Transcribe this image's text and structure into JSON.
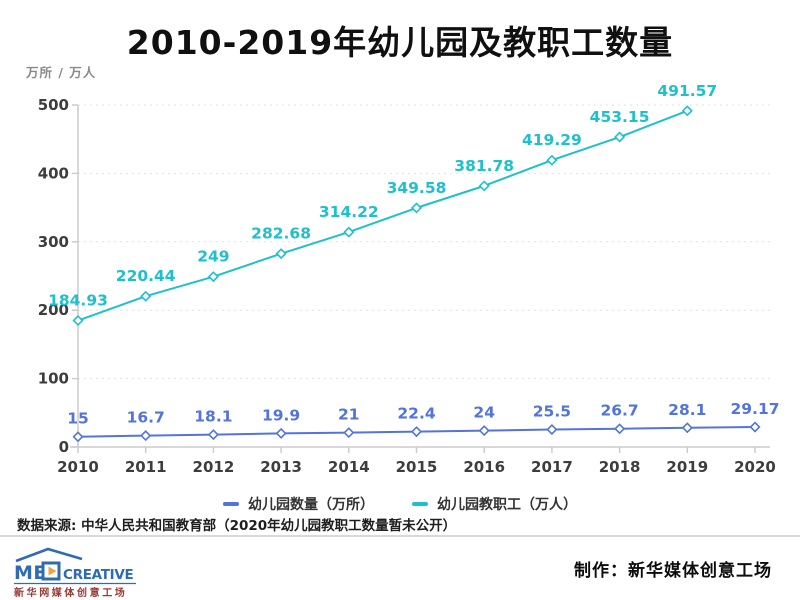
{
  "title": "2010-2019年幼儿园及教职工数量",
  "unit_label": "万所 / 万人",
  "source_note": "数据来源: 中华人民共和国教育部（2020年幼儿园教职工数量暂未公开）",
  "legend": {
    "items": [
      {
        "label": "幼儿园数量（万所）"
      },
      {
        "label": "幼儿园教职工（万人）"
      }
    ]
  },
  "footer": {
    "logo_text_pre": "ME",
    "logo_text_post": "CREATIVE",
    "logo_subtitle": "新华网媒体创意工场",
    "credit": "制作：新华媒体创意工场"
  },
  "colors": {
    "kindergarten_line": "#5274db",
    "staff_line": "#1fc0ce",
    "grid": "#e2e2e2",
    "axis": "#cccccc",
    "axis_text": "#3d3d3d",
    "logo_blue": "#2e6bb2",
    "logo_orange": "#f2a33c",
    "logo_red": "#993b33"
  },
  "chart_data": {
    "type": "line",
    "title": "2010-2019年幼儿园及教职工数量",
    "xlabel": "",
    "ylabel": "万所 / 万人",
    "x": [
      2010,
      2011,
      2012,
      2013,
      2014,
      2015,
      2016,
      2017,
      2018,
      2019,
      2020
    ],
    "series": [
      {
        "id": "kindergartens",
        "name": "幼儿园数量（万所）",
        "color": "#5274db",
        "label_dy": -13,
        "values": [
          15,
          16.7,
          18.1,
          19.9,
          21,
          22.4,
          24,
          25.5,
          26.7,
          28.1,
          29.17
        ]
      },
      {
        "id": "staff",
        "name": "幼儿园教职工（万人）",
        "color": "#1fc0ce",
        "label_dy": -15,
        "values": [
          184.93,
          220.44,
          249,
          282.68,
          314.22,
          349.58,
          381.78,
          419.29,
          453.15,
          491.57
        ]
      }
    ],
    "ylim": [
      0,
      500
    ],
    "yticks": [
      0,
      100,
      200,
      300,
      400,
      500
    ],
    "grid": true,
    "grid_style": "dashed",
    "legend_position": "bottom",
    "marker": "diamond",
    "data_labels": true
  }
}
